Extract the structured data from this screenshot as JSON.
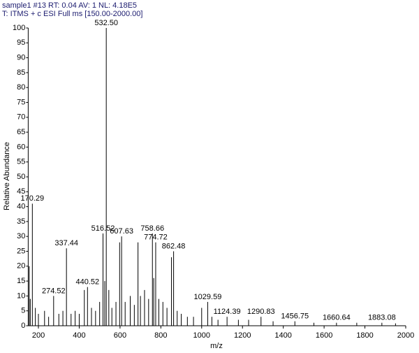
{
  "chart_data": {
    "type": "stem",
    "title": "sample1 #13  RT: 0.04  AV: 1  NL: 4.18E5",
    "subtitle": "T: ITMS + c ESI Full ms [150.00-2000.00]",
    "x_label": "m/z",
    "y_label": "Relative Abundance",
    "color": "#000000",
    "xlim": [
      150,
      2000
    ],
    "ylim": [
      0,
      100
    ],
    "xticks": [
      200,
      400,
      600,
      800,
      1000,
      1200,
      1400,
      1600,
      1800,
      2000
    ],
    "yticks": [
      0,
      5,
      10,
      15,
      20,
      25,
      30,
      35,
      40,
      45,
      50,
      55,
      60,
      65,
      70,
      75,
      80,
      85,
      90,
      95,
      100
    ],
    "x": [
      155,
      160,
      170.29,
      185,
      200,
      230,
      250,
      274.52,
      300,
      320,
      337.44,
      360,
      380,
      400,
      425,
      440.52,
      460,
      480,
      500,
      516.52,
      525,
      532.5,
      545,
      560,
      580,
      598,
      607.63,
      625,
      650,
      670,
      688,
      700,
      720,
      740,
      758.66,
      765,
      774.72,
      790,
      810,
      830,
      852,
      862.48,
      880,
      900,
      930,
      960,
      1000,
      1029.59,
      1050,
      1080,
      1124.39,
      1180,
      1230,
      1290.83,
      1350,
      1456.75,
      1550,
      1660.64,
      1760,
      1883.08,
      1950
    ],
    "values": [
      20,
      9,
      41,
      6,
      4,
      5,
      3,
      10,
      4,
      5,
      26,
      4,
      5,
      4,
      12,
      13,
      6,
      5,
      8,
      31,
      15,
      100,
      12,
      6,
      8,
      28,
      30,
      8,
      10,
      7,
      28,
      10,
      12,
      9,
      31,
      16,
      28,
      9,
      8,
      6,
      23,
      25,
      5,
      4,
      3,
      3,
      6,
      8,
      3,
      2,
      3,
      2,
      2,
      3,
      1.5,
      1.5,
      1,
      1,
      1,
      1,
      0.8
    ],
    "peak_labels": [
      null,
      null,
      "170.29",
      null,
      null,
      null,
      null,
      "274.52",
      null,
      null,
      "337.44",
      null,
      null,
      null,
      null,
      "440.52",
      null,
      null,
      null,
      "516.52",
      null,
      "532.50",
      null,
      null,
      null,
      null,
      "607.63",
      null,
      null,
      null,
      null,
      null,
      null,
      null,
      "758.66",
      null,
      "774.72",
      null,
      null,
      null,
      null,
      "862.48",
      null,
      null,
      null,
      null,
      null,
      "1029.59",
      null,
      null,
      "1124.39",
      null,
      null,
      "1290.83",
      null,
      "1456.75",
      null,
      "1660.64",
      null,
      "1883.08",
      null
    ]
  }
}
